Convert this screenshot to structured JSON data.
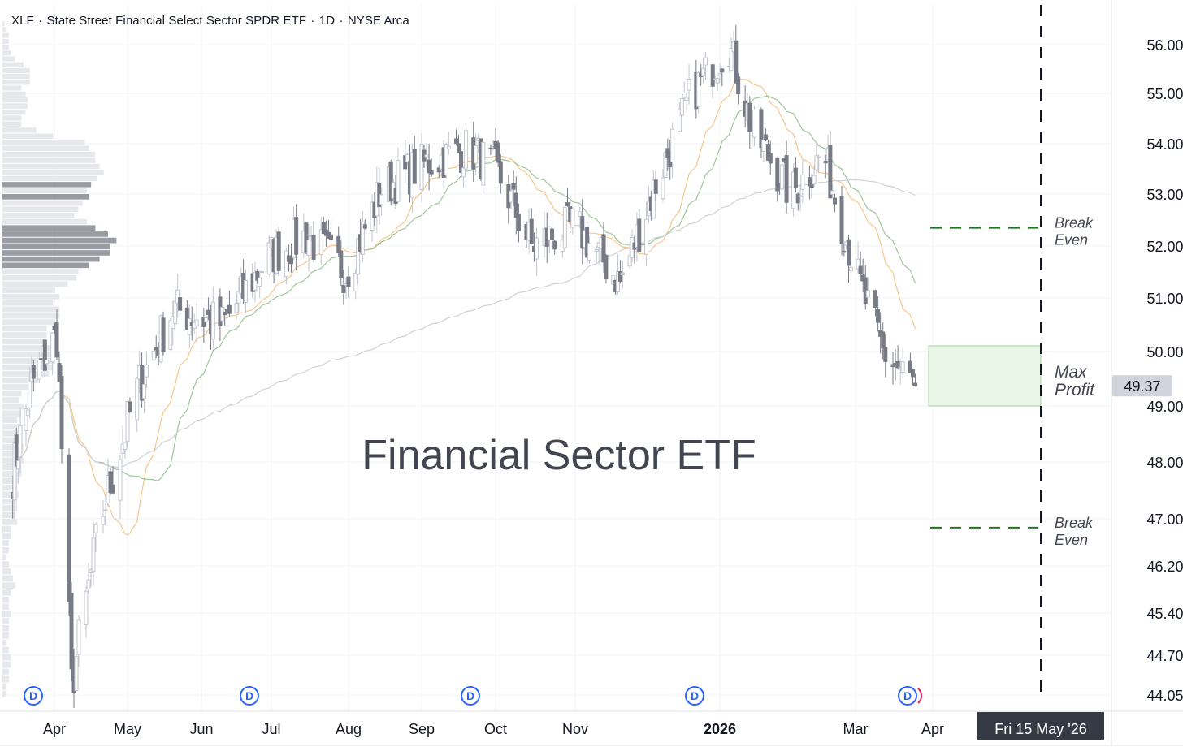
{
  "header": {
    "symbol": "XLF",
    "name": "State Street Financial Select Sector SPDR ETF",
    "interval": "1D",
    "exchange": "NYSE Arca"
  },
  "colors": {
    "background": "#ffffff",
    "candle_up": "#c3c6d0",
    "candle_down": "#787b86",
    "ma_fast": "#f7c78e",
    "ma_mid": "#9fc79a",
    "ma_slow": "#cfd1d6",
    "break_even": "#1f7a1f",
    "max_profit_fill": "#e9f5e6",
    "max_profit_border": "#9fd19a",
    "dividend": "#2962ff",
    "expiry_line": "#131722",
    "price_badge_bg": "#d1d4dc",
    "date_badge_bg": "#363a45"
  },
  "chart_data": {
    "type": "candlestick",
    "title": "Financial Sector ETF",
    "y_axis": {
      "ticks": [
        56.0,
        55.0,
        54.0,
        53.0,
        52.0,
        51.0,
        50.0,
        49.0,
        48.0,
        47.0,
        46.2,
        45.4,
        44.7,
        44.05
      ],
      "tick_labels": [
        "56.00",
        "55.00",
        "54.00",
        "53.00",
        "52.00",
        "51.00",
        "50.00",
        "49.00",
        "48.00",
        "47.00",
        "46.20",
        "45.40",
        "44.70",
        "44.05"
      ],
      "range": [
        43.9,
        56.5
      ],
      "scale": "log"
    },
    "x_axis": {
      "labels": [
        "Apr",
        "May",
        "Jun",
        "Jul",
        "Aug",
        "Sep",
        "Oct",
        "Nov",
        "2026",
        "Mar",
        "Apr"
      ],
      "bold_labels": [
        "2026"
      ]
    },
    "last_price": {
      "value": 49.37,
      "label": "49.37"
    },
    "expiry": {
      "date": "2026-05-15",
      "label": "Fri 15 May '26"
    },
    "annotations": [
      {
        "type": "hline",
        "price": 52.35,
        "label_line1": "Break",
        "label_line2": "Even"
      },
      {
        "type": "hline",
        "price": 46.85,
        "label_line1": "Break",
        "label_line2": "Even"
      },
      {
        "type": "zone",
        "price_from": 49.0,
        "price_to": 50.0,
        "label_line1": "Max",
        "label_line2": "Profit"
      }
    ],
    "dividend_markers": [
      {
        "label": "D",
        "month": "Mar"
      },
      {
        "label": "D",
        "month": "Jun"
      },
      {
        "label": "D",
        "month": "Sep"
      },
      {
        "label": "D",
        "month": "Dec"
      },
      {
        "label": "D",
        "month": "Mar"
      }
    ],
    "price_path": {
      "description_points": [
        [
          "2025-03-10",
          47.8
        ],
        [
          "2025-03-20",
          49.4
        ],
        [
          "2025-04-02",
          50.3
        ],
        [
          "2025-04-08",
          44.2
        ],
        [
          "2025-04-20",
          47.0
        ],
        [
          "2025-05-05",
          49.3
        ],
        [
          "2025-05-20",
          50.8
        ],
        [
          "2025-06-10",
          50.5
        ],
        [
          "2025-06-30",
          51.8
        ],
        [
          "2025-07-15",
          52.2
        ],
        [
          "2025-07-31",
          51.5
        ],
        [
          "2025-08-15",
          53.1
        ],
        [
          "2025-09-02",
          53.6
        ],
        [
          "2025-09-20",
          53.9
        ],
        [
          "2025-10-01",
          53.5
        ],
        [
          "2025-10-15",
          52.0
        ],
        [
          "2025-11-01",
          52.4
        ],
        [
          "2025-11-20",
          51.3
        ],
        [
          "2025-12-05",
          53.2
        ],
        [
          "2025-12-20",
          55.0
        ],
        [
          "2026-01-05",
          56.0
        ],
        [
          "2026-01-15",
          54.3
        ],
        [
          "2026-02-01",
          53.0
        ],
        [
          "2026-02-15",
          53.8
        ],
        [
          "2026-03-01",
          51.5
        ],
        [
          "2026-03-12",
          50.0
        ],
        [
          "2026-03-25",
          49.37
        ]
      ]
    },
    "moving_averages": [
      {
        "color": "ma_fast"
      },
      {
        "color": "ma_mid"
      },
      {
        "color": "ma_slow"
      }
    ]
  }
}
